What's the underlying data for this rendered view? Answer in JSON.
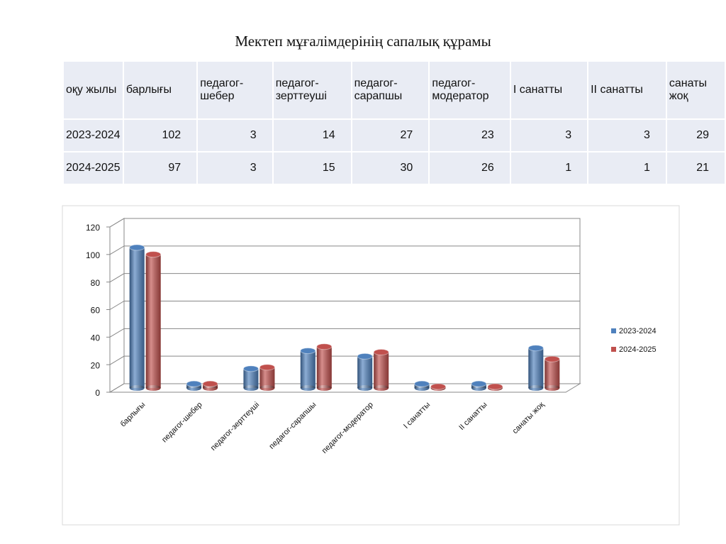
{
  "title": "Мектеп мұғалімдерінің сапалық құрамы",
  "table": {
    "header": [
      "оқу жылы",
      "барлығы",
      "педагог-шебер",
      "педагог-зерттеуші",
      "педагог-сарапшы",
      "педагог-модератор",
      "I санатты",
      "II санатты",
      "санаты жоқ"
    ],
    "rows": [
      [
        "2023-2024",
        "102",
        "3",
        "14",
        "27",
        "23",
        "3",
        "3",
        "29"
      ],
      [
        "2024-2025",
        "97",
        "3",
        "15",
        "30",
        "26",
        "1",
        "1",
        "21"
      ]
    ]
  },
  "chart_data": {
    "type": "bar",
    "categories": [
      "барлығы",
      "педагог-шебер",
      "педагог-зерттеуші",
      "педагог-сарапшы",
      "педагог-модератор",
      "I санатты",
      "II санатты",
      "санаты жоқ"
    ],
    "series": [
      {
        "name": "2023-2024",
        "color": "#4f81bd",
        "values": [
          102,
          3,
          14,
          27,
          23,
          3,
          3,
          29
        ]
      },
      {
        "name": "2024-2025",
        "color": "#c0504d",
        "values": [
          97,
          3,
          15,
          30,
          26,
          1,
          1,
          21
        ]
      }
    ],
    "ylim": [
      0,
      120
    ],
    "yticks": [
      0,
      20,
      40,
      60,
      80,
      100,
      120
    ],
    "grid": true,
    "legend": "right"
  }
}
